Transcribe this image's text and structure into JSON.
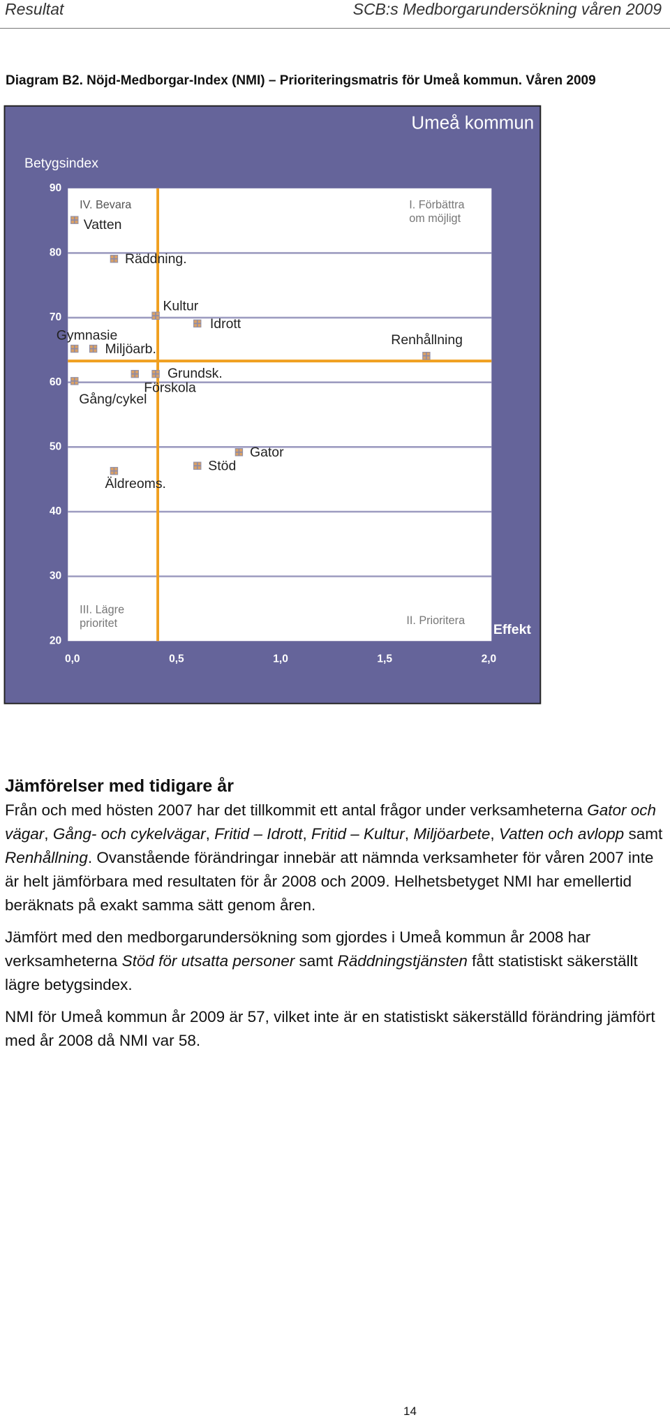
{
  "header": {
    "left": "Resultat",
    "right": "SCB:s Medborgarundersökning våren 2009"
  },
  "caption": "Diagram B2. Nöjd-Medborgar-Index (NMI) – Prioriteringsmatris för Umeå kommun. Våren 2009",
  "chart_data": {
    "type": "scatter",
    "title": "Umeå kommun",
    "y_label": "Betygsindex",
    "x_label": "Effekt",
    "xlim": [
      0,
      2
    ],
    "ylim": [
      20,
      90
    ],
    "xticks": [
      {
        "value": 0,
        "label": "0,0"
      },
      {
        "value": 0.5,
        "label": "0,5"
      },
      {
        "value": 1,
        "label": "1,0"
      },
      {
        "value": 1.5,
        "label": "1,5"
      },
      {
        "value": 2,
        "label": "2,0"
      }
    ],
    "yticks": [
      20,
      30,
      40,
      50,
      60,
      70,
      80,
      90
    ],
    "grid": true,
    "marker_color": "#d9a066",
    "reference_color": "#f0a020",
    "reference_lines": {
      "x": 0.41,
      "y": 63.3
    },
    "quadrants": [
      {
        "lines": [
          "IV. Bevara"
        ]
      },
      {
        "lines": [
          "I. Förbättra",
          "om möjligt"
        ]
      },
      {
        "lines": [
          "III. Lägre",
          "prioritet"
        ]
      },
      {
        "lines": [
          "II. Prioritera"
        ]
      }
    ],
    "points": {
      "labels": [
        "Vatten",
        "Räddning.",
        "Kultur",
        "Idrott",
        "Gymnasie",
        "Miljöarb.",
        "Renhållning",
        "Grundsk.",
        "Förskola",
        "Gång/cykel",
        "Gator",
        "Stöd",
        "Äldreoms."
      ],
      "x": [
        0.01,
        0.2,
        0.4,
        0.6,
        0.01,
        0.1,
        1.7,
        0.4,
        0.3,
        0.01,
        0.8,
        0.6,
        0.2
      ],
      "y": [
        85.1,
        79.1,
        70.3,
        69.1,
        65.2,
        65.2,
        64.1,
        61.3,
        61.3,
        60.2,
        49.2,
        47.1,
        46.3
      ]
    }
  },
  "body": {
    "heading": "Jämförelser med tidigare år",
    "paragraphs": [
      [
        {
          "text": "Från och med hösten 2007 har det tillkommit ett antal frågor under verksamheterna ",
          "italic": false
        },
        {
          "text": "Gator och vägar",
          "italic": true
        },
        {
          "text": ", ",
          "italic": false
        },
        {
          "text": "Gång- och cykelvägar",
          "italic": true
        },
        {
          "text": ", ",
          "italic": false
        },
        {
          "text": "Fritid – Idrott",
          "italic": true
        },
        {
          "text": ", ",
          "italic": false
        },
        {
          "text": "Fritid – Kultur",
          "italic": true
        },
        {
          "text": ", ",
          "italic": false
        },
        {
          "text": "Miljöarbete",
          "italic": true
        },
        {
          "text": ", ",
          "italic": false
        },
        {
          "text": "Vatten och avlopp",
          "italic": true
        },
        {
          "text": " samt ",
          "italic": false
        },
        {
          "text": "Renhållning",
          "italic": true
        },
        {
          "text": ". Ovanstående förändringar innebär att nämnda verksamheter för våren 2007 inte är helt jämförbara med resultaten för år 2008 och 2009. Helhetsbetyget NMI har emellertid beräknats på exakt samma sätt genom åren.",
          "italic": false
        }
      ],
      [
        {
          "text": "Jämfört med den medborgarundersökning som gjordes i Umeå kommun år 2008 har verksamheterna ",
          "italic": false
        },
        {
          "text": "Stöd för utsatta personer",
          "italic": true
        },
        {
          "text": " samt ",
          "italic": false
        },
        {
          "text": "Räddningstjänsten",
          "italic": true
        },
        {
          "text": " fått statistiskt säkerställt lägre betygsindex.",
          "italic": false
        }
      ],
      [
        {
          "text": "NMI för Umeå kommun år 2009 är 57, vilket inte är en statistiskt säkerställd förändring jämfört med år 2008 då NMI var 58.",
          "italic": false
        }
      ]
    ]
  },
  "page_number": "14"
}
